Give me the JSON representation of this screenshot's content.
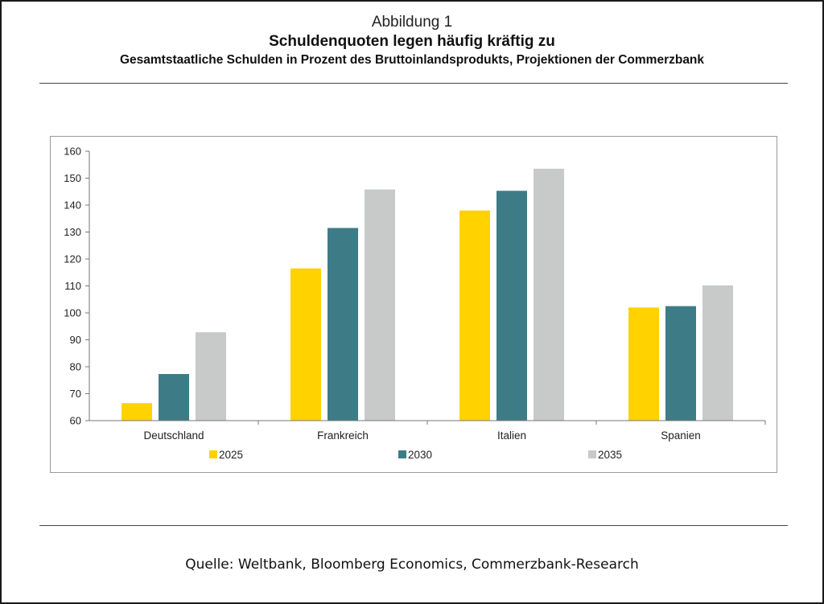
{
  "header": {
    "caption": "Abbildung 1",
    "title": "Schuldenquoten legen häufig kräftig zu",
    "subtitle": "Gesamtstaatliche Schulden in Prozent des Bruttoinlandsprodukts, Projektionen der Commerzbank"
  },
  "chart_data": {
    "type": "bar",
    "categories": [
      "Deutschland",
      "Frankreich",
      "Italien",
      "Spanien"
    ],
    "series": [
      {
        "name": "2025",
        "color": "#ffd200",
        "values": [
          66.5,
          116.5,
          138,
          102
        ]
      },
      {
        "name": "2030",
        "color": "#3d7c87",
        "values": [
          77.3,
          131.5,
          145.3,
          102.5
        ]
      },
      {
        "name": "2035",
        "color": "#c8cac9",
        "values": [
          92.8,
          145.8,
          153.5,
          110.2
        ]
      }
    ],
    "ylim": [
      60,
      160
    ],
    "yticks": [
      60,
      70,
      80,
      90,
      100,
      110,
      120,
      130,
      140,
      150,
      160
    ],
    "legend": "bottom",
    "grid": false
  },
  "footer": {
    "source": "Quelle: Weltbank, Bloomberg Economics, Commerzbank-Research"
  }
}
